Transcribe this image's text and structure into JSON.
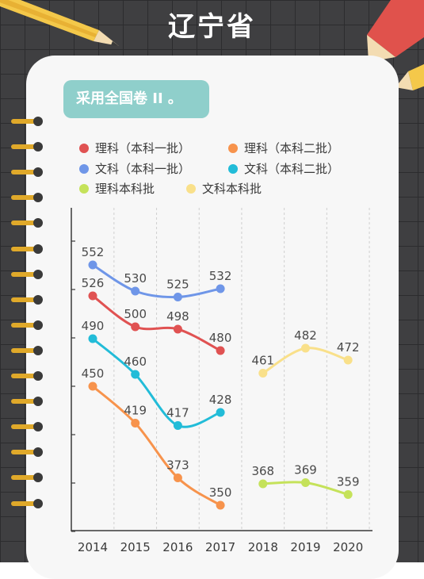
{
  "title": "辽宁省",
  "badge": "采用全国卷 II 。",
  "legend": [
    {
      "label": "理科（本科一批）",
      "color": "#e05252"
    },
    {
      "label": "理科（本科二批）",
      "color": "#f7934c"
    },
    {
      "label": "文科（本科一批）",
      "color": "#6f96e8"
    },
    {
      "label": "文科（本科二批）",
      "color": "#22bcd8"
    },
    {
      "label": "理科本科批",
      "color": "#c5e25a"
    },
    {
      "label": "文科本科批",
      "color": "#f9e08a"
    }
  ],
  "chart_data": {
    "type": "line",
    "categories": [
      "2014",
      "2015",
      "2016",
      "2017",
      "2018",
      "2019",
      "2020"
    ],
    "series": [
      {
        "name": "理科（本科一批）",
        "color": "#e05252",
        "values": [
          526,
          500,
          498,
          480,
          null,
          null,
          null
        ]
      },
      {
        "name": "理科（本科二批）",
        "color": "#f7934c",
        "values": [
          450,
          419,
          373,
          350,
          null,
          null,
          null
        ]
      },
      {
        "name": "文科（本科一批）",
        "color": "#6f96e8",
        "values": [
          552,
          530,
          525,
          532,
          null,
          null,
          null
        ]
      },
      {
        "name": "文科（本科二批）",
        "color": "#22bcd8",
        "values": [
          490,
          460,
          417,
          428,
          null,
          null,
          null
        ]
      },
      {
        "name": "理科本科批",
        "color": "#c5e25a",
        "values": [
          null,
          null,
          null,
          null,
          368,
          369,
          359
        ]
      },
      {
        "name": "文科本科批",
        "color": "#f9e08a",
        "values": [
          null,
          null,
          null,
          null,
          461,
          482,
          472
        ]
      }
    ],
    "grid": "vertical dashed",
    "data_labels": true
  }
}
